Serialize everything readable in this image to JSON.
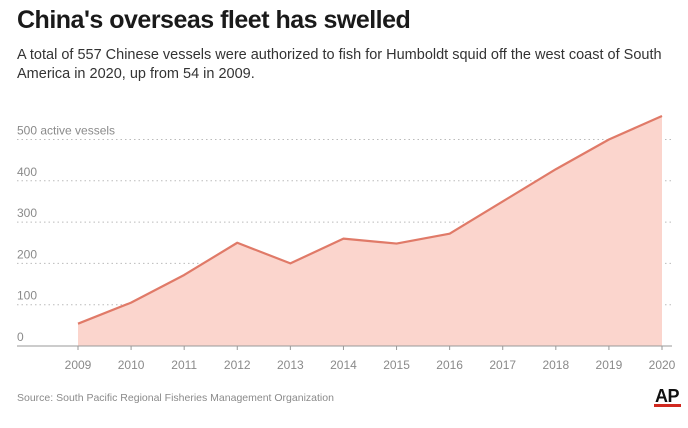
{
  "header": {
    "title": "China's overseas fleet has swelled",
    "subtitle": "A total of 557 Chinese vessels were authorized to fish for Humboldt squid off the west coast of South America in 2020, up from 54 in 2009."
  },
  "footer": {
    "source": "Source: South Pacific Regional Fisheries Management Organization",
    "logo": "AP"
  },
  "colors": {
    "line": "#e07a68",
    "area": "#fbd5cd",
    "grid": "#bbbbbb",
    "axis_text": "#8a8a8a",
    "brand_red": "#d0281f"
  },
  "chart_data": {
    "type": "area",
    "x": [
      2009,
      2010,
      2011,
      2012,
      2013,
      2014,
      2015,
      2016,
      2017,
      2018,
      2019,
      2020
    ],
    "series": [
      {
        "values": [
          54,
          105,
          172,
          250,
          200,
          260,
          248,
          272,
          350,
          428,
          500,
          557
        ]
      }
    ],
    "xtick_labels": [
      "2009",
      "2010",
      "2011",
      "2012",
      "2013",
      "2014",
      "2015",
      "2016",
      "2017",
      "2018",
      "2019",
      "2020"
    ],
    "yticks": [
      0,
      100,
      200,
      300,
      400,
      500
    ],
    "ytick_labels": [
      "0",
      "100",
      "200",
      "300",
      "400",
      "500 active vessels"
    ],
    "ylim": [
      0,
      557
    ],
    "grid": "horizontal dotted"
  }
}
